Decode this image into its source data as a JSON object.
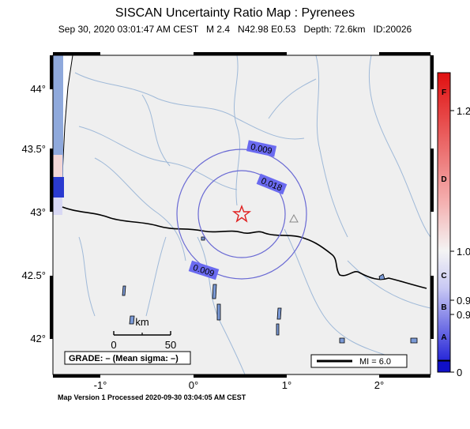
{
  "title": "SISCAN Uncertainty Ratio Map : Pyrenees",
  "subtitle": {
    "datetime": "Sep 30, 2020 03:01:47 AM CEST",
    "magnitude": "M 2.4",
    "location": "N42.98 E0.53",
    "depth": "Depth: 72.6km",
    "id": "ID:20026"
  },
  "footer": "Map Version 1 Processed 2020-09-30 03:04:05 AM CEST",
  "axes": {
    "lon_ticks": [
      "-1°",
      "0°",
      "1°",
      "2°"
    ],
    "lat_ticks": [
      "44°",
      "43.5°",
      "43°",
      "42.5°",
      "42°"
    ]
  },
  "contours": [
    {
      "label": "0.009"
    },
    {
      "label": "0.018"
    },
    {
      "label": "0.009"
    }
  ],
  "scale_bar": {
    "unit": "km",
    "min": "0",
    "max": "50"
  },
  "grade_box": "GRADE: – (Mean sigma: –)",
  "mi_legend": "MI = 6.0",
  "colorbar": {
    "letters": [
      "F",
      "D",
      "C",
      "B",
      "A"
    ],
    "values": [
      "1.2",
      "1.0",
      "0.9",
      "0.9",
      "0"
    ]
  },
  "markers": {
    "epicenter": "star-icon",
    "station": "triangle-icon"
  },
  "colors": {
    "land": "#efefef",
    "rivers": "#9fb9d8",
    "contours": "#6a6ad4",
    "contour_label_bg": "#6a6af0",
    "epicenter": "#e02020",
    "cb_top": "#e01010",
    "cb_mid": "#f4f4f4",
    "cb_bottom": "#2222d8"
  }
}
